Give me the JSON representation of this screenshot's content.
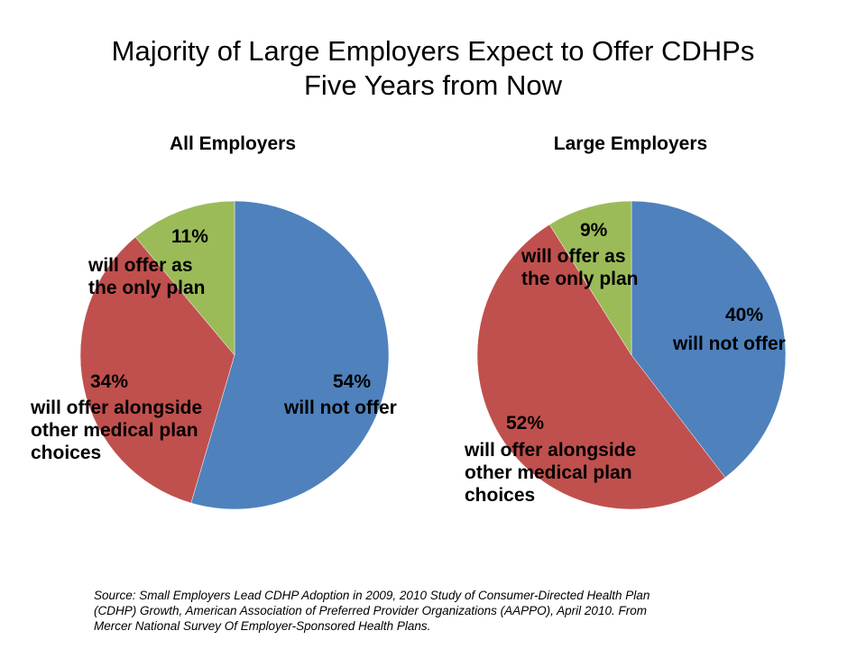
{
  "title_line1": "Majority of Large Employers Expect to Offer CDHPs",
  "title_line2": "Five Years from Now",
  "source": "Source: Small Employers Lead CDHP Adoption in 2009, 2010 Study of Consumer-Directed Health Plan (CDHP) Growth, American Association of Preferred Provider Organizations (AAPPO), April 2010. From Mercer National Survey Of Employer-Sponsored Health Plans.",
  "chart_data": [
    {
      "type": "pie",
      "title": "All Employers",
      "slices": [
        {
          "label": "will not offer",
          "value": 54,
          "value_text": "54%",
          "color": "#4f81bd"
        },
        {
          "label_lines": [
            "will offer alongside",
            "other medical plan",
            "choices"
          ],
          "label": "will offer alongside other medical plan choices",
          "value": 34,
          "value_text": "34%",
          "color": "#c0504d"
        },
        {
          "label_lines": [
            "will offer as",
            "the only plan"
          ],
          "label": "will offer as the only plan",
          "value": 11,
          "value_text": "11%",
          "color": "#9bbb59"
        }
      ]
    },
    {
      "type": "pie",
      "title": "Large Employers",
      "slices": [
        {
          "label": "will not offer",
          "value": 40,
          "value_text": "40%",
          "color": "#4f81bd"
        },
        {
          "label_lines": [
            "will offer alongside",
            "other medical plan",
            "choices"
          ],
          "label": "will offer alongside other medical plan choices",
          "value": 52,
          "value_text": "52%",
          "color": "#c0504d"
        },
        {
          "label_lines": [
            "will offer as",
            "the only plan"
          ],
          "label": "will offer as the only plan",
          "value": 9,
          "value_text": "9%",
          "color": "#9bbb59"
        }
      ]
    }
  ]
}
